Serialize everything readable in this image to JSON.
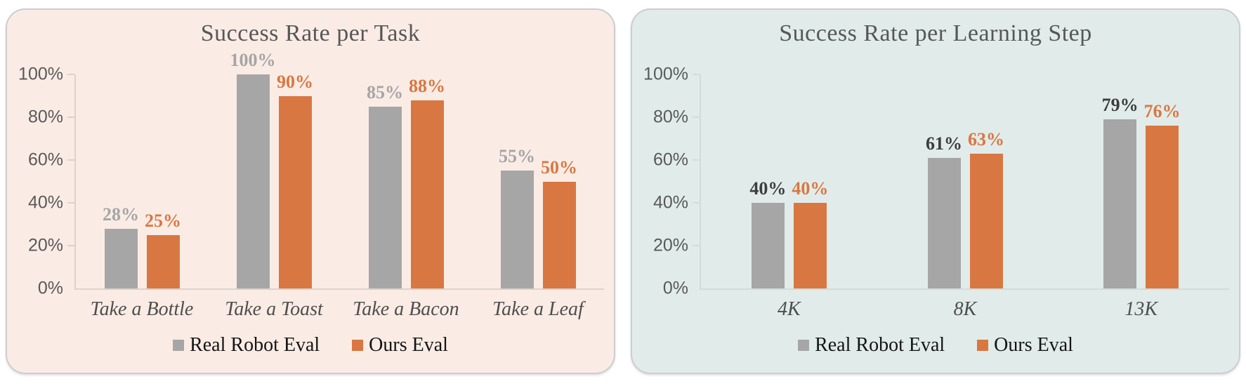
{
  "styles": {
    "page_background": "#FFFFFF",
    "title_color": "#575757",
    "ytick_color": "#595959",
    "category_color": "#4E4E4E",
    "legend_text_color": "#141414",
    "card_border_color": "#CBCECB"
  },
  "chart_data": [
    {
      "type": "bar",
      "title": "Success Rate per Task",
      "panel_bg": "#FAECE5",
      "axis_color": "#DCD2CB",
      "categories": [
        "Take a Bottle",
        "Take a Toast",
        "Take a Bacon",
        "Take a Leaf"
      ],
      "yticks": [
        "0%",
        "20%",
        "40%",
        "60%",
        "80%",
        "100%"
      ],
      "ylim": [
        0,
        100
      ],
      "grid": false,
      "legend_position": "bottom",
      "series": [
        {
          "name": "Real Robot Eval",
          "color": "#A6A6A6",
          "label_color": "#A5A5A5",
          "values": [
            28,
            100,
            85,
            55
          ],
          "labels": [
            "28%",
            "100%",
            "85%",
            "55%"
          ]
        },
        {
          "name": "Ours Eval",
          "color": "#D97742",
          "label_color": "#D97742",
          "values": [
            25,
            90,
            88,
            50
          ],
          "labels": [
            "25%",
            "90%",
            "88%",
            "50%"
          ]
        }
      ]
    },
    {
      "type": "bar",
      "title": "Success Rate per Learning Step",
      "panel_bg": "#E1ECEA",
      "axis_color": "#D2DCDA",
      "categories": [
        "4K",
        "8K",
        "13K"
      ],
      "yticks": [
        "0%",
        "20%",
        "40%",
        "60%",
        "80%",
        "100%"
      ],
      "ylim": [
        0,
        100
      ],
      "grid": false,
      "legend_position": "bottom",
      "series": [
        {
          "name": "Real Robot Eval",
          "color": "#A6A6A6",
          "label_color": "#3D3D3D",
          "values": [
            40,
            61,
            79
          ],
          "labels": [
            "40%",
            "61%",
            "79%"
          ]
        },
        {
          "name": "Ours Eval",
          "color": "#D97742",
          "label_color": "#D97742",
          "values": [
            40,
            63,
            76
          ],
          "labels": [
            "40%",
            "63%",
            "76%"
          ]
        }
      ]
    }
  ]
}
